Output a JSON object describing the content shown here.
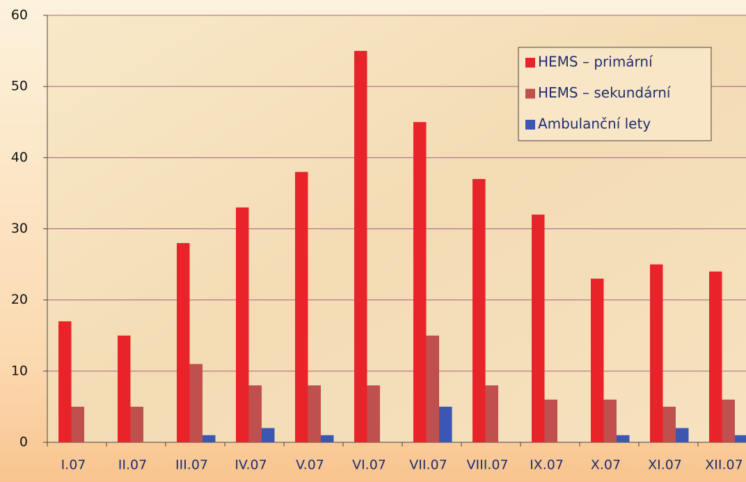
{
  "chart_data": {
    "type": "bar",
    "categories": [
      "I.07",
      "II.07",
      "III.07",
      "IV.07",
      "V.07",
      "VI.07",
      "VII.07",
      "VIII.07",
      "IX.07",
      "X.07",
      "XI.07",
      "XII.07"
    ],
    "series": [
      {
        "name": "HEMS – primární",
        "color": "#e8242a",
        "values": [
          17,
          15,
          28,
          33,
          38,
          55,
          45,
          37,
          32,
          23,
          25,
          24
        ]
      },
      {
        "name": "HEMS – sekundární",
        "color": "#c0504d",
        "values": [
          5,
          5,
          11,
          8,
          8,
          8,
          15,
          8,
          6,
          6,
          5,
          6
        ]
      },
      {
        "name": "Ambulanční lety",
        "color": "#3b56b3",
        "values": [
          0,
          0,
          1,
          2,
          1,
          0,
          5,
          0,
          0,
          1,
          2,
          1
        ]
      }
    ],
    "ylim": [
      0,
      60
    ],
    "yticks": [
      0,
      10,
      20,
      30,
      40,
      50,
      60
    ],
    "grid": true,
    "legend": "top-right"
  }
}
